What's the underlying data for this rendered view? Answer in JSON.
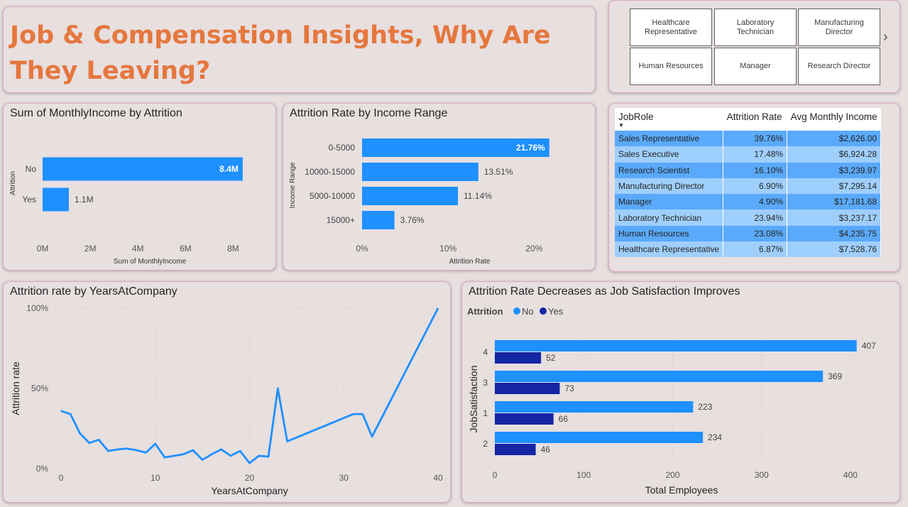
{
  "title": "Job & Compensation Insights, Why Are They Leaving?",
  "slicer": {
    "items": [
      "Healthcare Representative",
      "Laboratory Technician",
      "Manufacturing Director",
      "Human Resources",
      "Manager",
      "Research Director"
    ],
    "next_icon": "chevron-right-icon"
  },
  "colors": {
    "primary": "#1e90ff",
    "secondary": "#1426a4",
    "title": "#e5773e",
    "row_dark": "#5aa9fa",
    "row_light": "#9fcffd"
  },
  "income_chart": {
    "chart_data": {
      "type": "bar",
      "orientation": "horizontal",
      "title": "Sum of MonthlyIncome by Attrition",
      "categories": [
        "No",
        "Yes"
      ],
      "values": [
        8.4,
        1.1
      ],
      "value_labels": [
        "8.4M",
        "1.1M"
      ],
      "xlabel": "Sum of MonthlyIncome",
      "ylabel": "Attrition",
      "xlim": [
        0,
        9
      ],
      "xticks": [
        0,
        2,
        4,
        6,
        8
      ],
      "xtick_labels": [
        "0M",
        "2M",
        "4M",
        "6M",
        "8M"
      ]
    }
  },
  "range_chart": {
    "chart_data": {
      "type": "bar",
      "orientation": "horizontal",
      "title": "Attrition Rate by Income Range",
      "categories": [
        "0-5000",
        "10000-15000",
        "5000-10000",
        "15000+"
      ],
      "values": [
        21.76,
        13.51,
        11.14,
        3.76
      ],
      "value_labels": [
        "21.76%",
        "13.51%",
        "11.14%",
        "3.76%"
      ],
      "xlabel": "Attrition Rate",
      "ylabel": "Income Range",
      "xlim": [
        0,
        25
      ],
      "xticks": [
        0,
        10,
        20
      ],
      "xtick_labels": [
        "0%",
        "10%",
        "20%"
      ]
    }
  },
  "jobrole_table": {
    "chart_data": {
      "type": "table",
      "columns": [
        "JobRole",
        "Attrition Rate",
        "Avg Monthly Income"
      ],
      "rows": [
        [
          "Sales Representative",
          "39.76%",
          "$2,626.00"
        ],
        [
          "Sales Executive",
          "17.48%",
          "$6,924.28"
        ],
        [
          "Research Scientist",
          "16.10%",
          "$3,239.97"
        ],
        [
          "Manufacturing Director",
          "6.90%",
          "$7,295.14"
        ],
        [
          "Manager",
          "4.90%",
          "$17,181.68"
        ],
        [
          "Laboratory Technician",
          "23.94%",
          "$3,237.17"
        ],
        [
          "Human Resources",
          "23.08%",
          "$4,235.75"
        ],
        [
          "Healthcare Representative",
          "6.87%",
          "$7,528.76"
        ]
      ]
    }
  },
  "years_chart": {
    "chart_data": {
      "type": "line",
      "title": "Attrition rate by YearsAtCompany",
      "xlabel": "YearsAtCompany",
      "ylabel": "Attrition rate",
      "x": [
        0,
        1,
        2,
        3,
        4,
        5,
        6,
        7,
        8,
        9,
        10,
        11,
        12,
        13,
        14,
        15,
        16,
        17,
        18,
        19,
        20,
        21,
        22,
        23,
        24,
        31,
        32,
        33,
        40
      ],
      "y": [
        36,
        34,
        22,
        16,
        18,
        11,
        12,
        12.5,
        11.5,
        10,
        15.5,
        7,
        8,
        9,
        11.5,
        5.5,
        9,
        12,
        8,
        11,
        3.5,
        8,
        7.5,
        50,
        17,
        34,
        34,
        20,
        100
      ],
      "xlim": [
        0,
        40
      ],
      "ylim": [
        0,
        100
      ],
      "xticks": [
        0,
        10,
        20,
        30,
        40
      ],
      "yticks": [
        0,
        50,
        100
      ],
      "ytick_labels": [
        "0%",
        "50%",
        "100%"
      ],
      "grid": true
    }
  },
  "satisfaction_chart": {
    "chart_data": {
      "type": "bar",
      "orientation": "horizontal",
      "title": "Attrition Rate Decreases as Job Satisfaction Improves",
      "legend_title": "Attrition",
      "legend_position": "top-left",
      "categories": [
        "4",
        "3",
        "1",
        "2"
      ],
      "series": [
        {
          "name": "No",
          "values": [
            407,
            369,
            223,
            234
          ]
        },
        {
          "name": "Yes",
          "values": [
            52,
            73,
            66,
            46
          ]
        }
      ],
      "xlabel": "Total Employees",
      "ylabel": "JobSatisfaction",
      "xlim": [
        0,
        420
      ],
      "xticks": [
        0,
        100,
        200,
        300,
        400
      ],
      "grid": true
    }
  }
}
